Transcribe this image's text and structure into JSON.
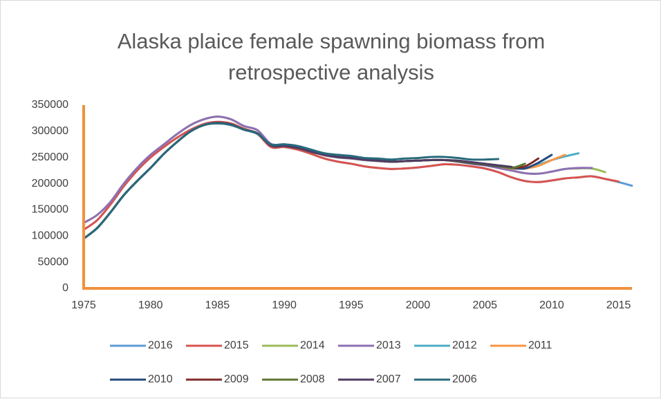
{
  "chart_data": {
    "type": "line",
    "title": "Alaska plaice female spawning biomass from retrospective analysis",
    "x": [
      1975,
      1976,
      1977,
      1978,
      1979,
      1980,
      1981,
      1982,
      1983,
      1984,
      1985,
      1986,
      1987,
      1988,
      1989,
      1990,
      1991,
      1992,
      1993,
      1994,
      1995,
      1996,
      1997,
      1998,
      1999,
      2000,
      2001,
      2002,
      2003,
      2004,
      2005,
      2006,
      2007,
      2008,
      2009,
      2010,
      2011,
      2012,
      2013,
      2014,
      2015,
      2016
    ],
    "xlim": [
      1975,
      2016
    ],
    "xticks": [
      1975,
      1980,
      1985,
      1990,
      1995,
      2000,
      2005,
      2010,
      2015
    ],
    "ylim": [
      0,
      350000
    ],
    "yticks": [
      0,
      50000,
      100000,
      150000,
      200000,
      250000,
      300000,
      350000
    ],
    "axis_color": "#f0913e",
    "series": [
      {
        "name": "2016",
        "color": "#5b9bd5",
        "values": [
          112000,
          130000,
          160000,
          195000,
          225000,
          250000,
          270000,
          288000,
          303000,
          314000,
          318000,
          315000,
          305000,
          295000,
          270000,
          270000,
          265000,
          257000,
          248000,
          242000,
          238000,
          233000,
          230000,
          228000,
          229000,
          231000,
          234000,
          237000,
          236000,
          233000,
          229000,
          222000,
          212000,
          205000,
          203000,
          206000,
          210000,
          212000,
          214000,
          209000,
          203000,
          196000
        ]
      },
      {
        "name": "2015",
        "color": "#d9534f",
        "values": [
          112000,
          130000,
          160000,
          195000,
          225000,
          250000,
          270000,
          288000,
          303000,
          314000,
          318000,
          315000,
          305000,
          295000,
          270000,
          270000,
          265000,
          257000,
          248000,
          242000,
          238000,
          233000,
          230000,
          228000,
          229000,
          231000,
          234000,
          237000,
          236000,
          233000,
          229000,
          222000,
          212000,
          205000,
          203000,
          206000,
          210000,
          212000,
          214000,
          209000,
          204000,
          null
        ]
      },
      {
        "name": "2014",
        "color": "#9bbb59",
        "values": [
          125000,
          140000,
          165000,
          200000,
          230000,
          255000,
          275000,
          295000,
          312000,
          323000,
          328000,
          323000,
          310000,
          302000,
          276000,
          275000,
          270000,
          262000,
          254000,
          250000,
          248000,
          245000,
          243000,
          242000,
          243000,
          244000,
          245000,
          245000,
          242000,
          238000,
          235000,
          230000,
          225000,
          220000,
          219000,
          223000,
          228000,
          229000,
          229000,
          222000,
          null,
          null
        ]
      },
      {
        "name": "2013",
        "color": "#8e6fb5",
        "values": [
          125000,
          140000,
          165000,
          200000,
          230000,
          255000,
          275000,
          295000,
          312000,
          323000,
          328000,
          323000,
          310000,
          302000,
          276000,
          275000,
          270000,
          262000,
          254000,
          250000,
          248000,
          245000,
          243000,
          242000,
          243000,
          244000,
          245000,
          245000,
          242000,
          238000,
          235000,
          230000,
          225000,
          220000,
          219000,
          223000,
          228000,
          230000,
          230000,
          null,
          null,
          null
        ]
      },
      {
        "name": "2012",
        "color": "#4bacc6",
        "values": [
          95000,
          115000,
          145000,
          178000,
          205000,
          230000,
          257000,
          280000,
          300000,
          312000,
          316000,
          313000,
          303000,
          296000,
          273000,
          272000,
          268000,
          261000,
          255000,
          251000,
          249000,
          246000,
          244000,
          242000,
          243000,
          244000,
          245000,
          245000,
          243000,
          240000,
          237000,
          234000,
          230000,
          230000,
          236000,
          245000,
          252000,
          258000,
          null,
          null,
          null,
          null
        ]
      },
      {
        "name": "2011",
        "color": "#f79646",
        "values": [
          95000,
          115000,
          145000,
          178000,
          205000,
          230000,
          257000,
          280000,
          300000,
          312000,
          316000,
          313000,
          303000,
          296000,
          273000,
          272000,
          268000,
          261000,
          255000,
          251000,
          249000,
          246000,
          244000,
          242000,
          243000,
          244000,
          245000,
          245000,
          242000,
          239000,
          236000,
          233000,
          229000,
          229000,
          234000,
          245000,
          255000,
          null,
          null,
          null,
          null,
          null
        ]
      },
      {
        "name": "2010",
        "color": "#234a7d",
        "values": [
          95000,
          115000,
          145000,
          178000,
          205000,
          230000,
          257000,
          280000,
          300000,
          312000,
          316000,
          313000,
          303000,
          296000,
          273000,
          272000,
          268000,
          261000,
          255000,
          251000,
          249000,
          246000,
          244000,
          242000,
          243000,
          244000,
          245000,
          245000,
          242000,
          239000,
          236000,
          233000,
          230000,
          229000,
          240000,
          255000,
          null,
          null,
          null,
          null,
          null,
          null
        ]
      },
      {
        "name": "2009",
        "color": "#7f2a27",
        "values": [
          95000,
          115000,
          145000,
          178000,
          205000,
          230000,
          257000,
          280000,
          300000,
          312000,
          316000,
          313000,
          303000,
          296000,
          273000,
          272000,
          268000,
          261000,
          255000,
          251000,
          249000,
          246000,
          244000,
          242000,
          243000,
          244000,
          245000,
          245000,
          243000,
          240000,
          237000,
          234000,
          231000,
          233000,
          248000,
          null,
          null,
          null,
          null,
          null,
          null,
          null
        ]
      },
      {
        "name": "2008",
        "color": "#5f7530",
        "values": [
          95000,
          115000,
          145000,
          178000,
          205000,
          230000,
          257000,
          280000,
          300000,
          312000,
          316000,
          313000,
          303000,
          296000,
          273000,
          272000,
          268000,
          261000,
          255000,
          251000,
          249000,
          246000,
          244000,
          242000,
          243000,
          244000,
          245000,
          245000,
          243000,
          240000,
          237000,
          234000,
          230000,
          238000,
          null,
          null,
          null,
          null,
          null,
          null,
          null,
          null
        ]
      },
      {
        "name": "2007",
        "color": "#4d3b62",
        "values": [
          95000,
          115000,
          145000,
          178000,
          205000,
          230000,
          257000,
          280000,
          300000,
          312000,
          316000,
          313000,
          303000,
          296000,
          273000,
          272000,
          268000,
          261000,
          255000,
          251000,
          249000,
          246000,
          244000,
          242000,
          243000,
          244000,
          245000,
          245000,
          244000,
          241000,
          238000,
          235000,
          232000,
          null,
          null,
          null,
          null,
          null,
          null,
          null,
          null,
          null
        ]
      },
      {
        "name": "2006",
        "color": "#276a7c",
        "values": [
          95000,
          115000,
          145000,
          178000,
          205000,
          230000,
          257000,
          280000,
          300000,
          312000,
          315000,
          312000,
          303000,
          295000,
          275000,
          275000,
          272000,
          265000,
          258000,
          255000,
          253000,
          249000,
          248000,
          246000,
          248000,
          249000,
          251000,
          251000,
          249000,
          246000,
          246000,
          247000,
          null,
          null,
          null,
          null,
          null,
          null,
          null,
          null,
          null,
          null
        ]
      }
    ]
  }
}
